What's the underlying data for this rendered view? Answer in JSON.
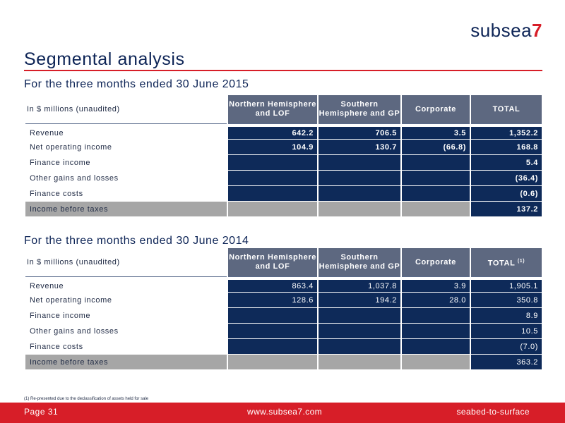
{
  "logo": {
    "word": "subsea",
    "seven": "7"
  },
  "title": "Segmental analysis",
  "section1": {
    "title": "For the three months ended 30 June 2015",
    "header": {
      "label": "In $ millions (unaudited)",
      "columns": [
        "Northern Hemisphere and LOF",
        "Southern Hemisphere and GP",
        "Corporate",
        "TOTAL"
      ],
      "total_note": ""
    },
    "rows": [
      {
        "label": "Revenue",
        "values": [
          "642.2",
          "706.5",
          "3.5",
          "1,352.2"
        ]
      },
      {
        "label": "Net operating income",
        "values": [
          "104.9",
          "130.7",
          "(66.8)",
          "168.8"
        ]
      },
      {
        "label": "Finance income",
        "values": [
          "",
          "",
          "",
          "5.4"
        ]
      },
      {
        "label": "Other gains and losses",
        "values": [
          "",
          "",
          "",
          "(36.4)"
        ]
      },
      {
        "label": "Finance costs",
        "values": [
          "",
          "",
          "",
          "(0.6)"
        ]
      },
      {
        "label": "Income before taxes",
        "values": [
          "",
          "",
          "",
          "137.2"
        ]
      }
    ]
  },
  "section2": {
    "title": "For the three months ended 30 June 2014",
    "header": {
      "label": "In $ millions (unaudited)",
      "columns": [
        "Northern Hemisphere and LOF",
        "Southern Hemisphere and GP",
        "Corporate",
        "TOTAL"
      ],
      "total_note": "(1)"
    },
    "rows": [
      {
        "label": "Revenue",
        "values": [
          "863.4",
          "1,037.8",
          "3.9",
          "1,905.1"
        ]
      },
      {
        "label": "Net operating income",
        "values": [
          "128.6",
          "194.2",
          "28.0",
          "350.8"
        ]
      },
      {
        "label": "Finance income",
        "values": [
          "",
          "",
          "",
          "8.9"
        ]
      },
      {
        "label": "Other gains and losses",
        "values": [
          "",
          "",
          "",
          "10.5"
        ]
      },
      {
        "label": "Finance costs",
        "values": [
          "",
          "",
          "",
          "(7.0)"
        ]
      },
      {
        "label": "Income before taxes",
        "values": [
          "",
          "",
          "",
          "363.2"
        ]
      }
    ]
  },
  "footnote": "(1)    Re-presented due to the declassification of assets held for sale",
  "footer": {
    "page": "Page  31",
    "url": "www.subsea7.com",
    "tagline": "seabed-to-surface"
  },
  "colors": {
    "brand_red": "#d71e28",
    "navy": "#0e2a59",
    "header_gray_blue": "#5d6880",
    "shade_gray": "#a6a6a6"
  }
}
